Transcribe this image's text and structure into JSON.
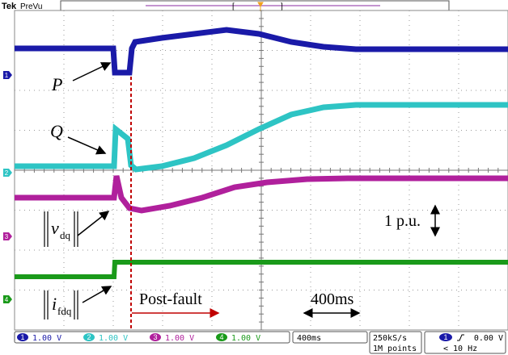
{
  "header": {
    "brand": "Tek",
    "mode": "PreVu"
  },
  "labels": {
    "p": "P",
    "q": "Q",
    "v": {
      "symbol": "v",
      "subscript": "dq"
    },
    "i": {
      "symbol": "i",
      "subscript": "fdq"
    },
    "pu": "1 p.u.",
    "fault": "Post-fault",
    "time": "400ms"
  },
  "channels": [
    {
      "number": "1",
      "scale": "1.00 V"
    },
    {
      "number": "2",
      "scale": "1.00 V"
    },
    {
      "number": "3",
      "scale": "1.00 V"
    },
    {
      "number": "4",
      "scale": "1.00 V"
    }
  ],
  "status": {
    "timebase": "400ms",
    "sample_rate": "250kS/s",
    "record": "1M points",
    "trigger_channel": "1",
    "trigger_level": "0.00 V",
    "filter": "< 10 Hz"
  }
}
